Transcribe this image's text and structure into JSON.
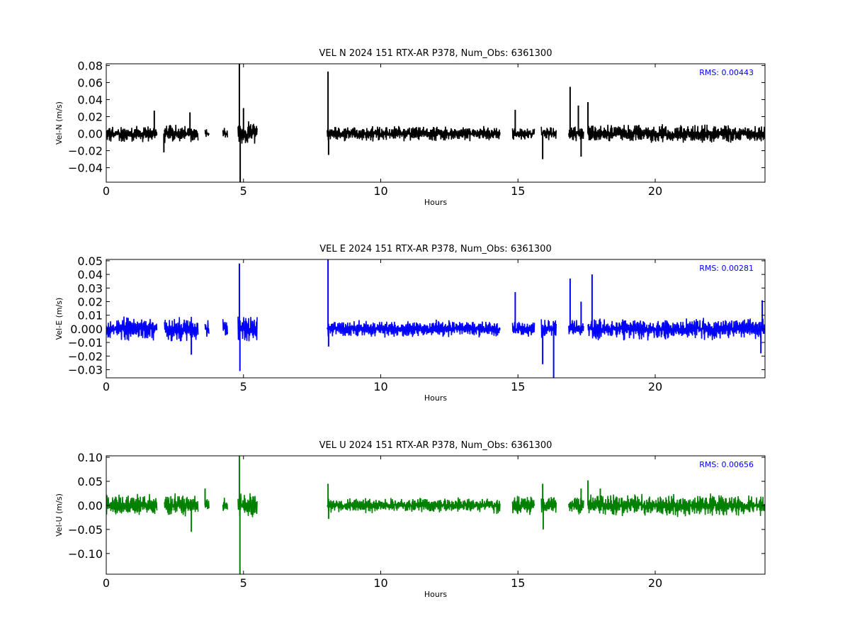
{
  "chart_data": [
    {
      "type": "line",
      "title": "VEL N 2024 151 RTX-AR  P378, Num_Obs: 6361300",
      "xlabel": "Hours",
      "ylabel": "Vel-N (m/s)",
      "xlim": [
        0,
        24
      ],
      "ylim": [
        -0.057,
        0.082
      ],
      "xticks": [
        0,
        5,
        10,
        15,
        20
      ],
      "xtick_labels": [
        "0",
        "5",
        "10",
        "15",
        "20"
      ],
      "yticks": [
        -0.04,
        -0.02,
        0.0,
        0.02,
        0.04,
        0.06,
        0.08
      ],
      "ytick_labels": [
        "−0.04",
        "−0.02",
        "0.00",
        "0.02",
        "0.04",
        "0.06",
        "0.08"
      ],
      "annotation": "RMS:  0.00443",
      "annotation_color": "#0000ff",
      "grid": false,
      "series": [
        {
          "color": "#000000",
          "segments": [
            {
              "x": [
                0.0,
                1.85
              ],
              "amp": 0.012
            },
            {
              "x": [
                2.12,
                3.35
              ],
              "amp": 0.012
            },
            {
              "x": [
                3.6,
                3.75
              ],
              "amp": 0.008
            },
            {
              "x": [
                4.25,
                4.42
              ],
              "amp": 0.009
            },
            {
              "x": [
                4.8,
                5.5
              ],
              "amp": 0.015
            },
            {
              "x": [
                8.05,
                14.35
              ],
              "amp": 0.01
            },
            {
              "x": [
                14.8,
                15.6
              ],
              "amp": 0.008
            },
            {
              "x": [
                15.85,
                16.4
              ],
              "amp": 0.009
            },
            {
              "x": [
                16.85,
                17.4
              ],
              "amp": 0.01
            },
            {
              "x": [
                17.55,
                24.0
              ],
              "amp": 0.012
            }
          ],
          "spikes": [
            {
              "x": 1.75,
              "y": 0.027
            },
            {
              "x": 2.1,
              "y": -0.022
            },
            {
              "x": 3.05,
              "y": 0.025
            },
            {
              "x": 4.85,
              "y": 0.082
            },
            {
              "x": 4.88,
              "y": -0.057
            },
            {
              "x": 5.0,
              "y": 0.03
            },
            {
              "x": 8.08,
              "y": 0.073
            },
            {
              "x": 8.1,
              "y": -0.025
            },
            {
              "x": 14.9,
              "y": 0.028
            },
            {
              "x": 15.9,
              "y": -0.03
            },
            {
              "x": 16.9,
              "y": 0.055
            },
            {
              "x": 17.2,
              "y": 0.033
            },
            {
              "x": 17.3,
              "y": -0.027
            },
            {
              "x": 17.55,
              "y": 0.037
            }
          ]
        }
      ]
    },
    {
      "type": "line",
      "title": "VEL E 2024 151 RTX-AR  P378, Num_Obs: 6361300",
      "xlabel": "Hours",
      "ylabel": "Vel-E (m/s)",
      "xlim": [
        0,
        24
      ],
      "ylim": [
        -0.036,
        0.051
      ],
      "xticks": [
        0,
        5,
        10,
        15,
        20
      ],
      "xtick_labels": [
        "0",
        "5",
        "10",
        "15",
        "20"
      ],
      "yticks": [
        -0.03,
        -0.02,
        -0.01,
        0.0,
        0.01,
        0.02,
        0.03,
        0.04,
        0.05
      ],
      "ytick_labels": [
        "−0.03",
        "−0.02",
        "−0.01",
        "0.000",
        "0.01",
        "0.02",
        "0.03",
        "0.04",
        "0.05"
      ],
      "annotation": "RMS:  0.00281",
      "annotation_color": "#0000ff",
      "grid": false,
      "series": [
        {
          "color": "#0000ff",
          "segments": [
            {
              "x": [
                0.0,
                1.85
              ],
              "amp": 0.01
            },
            {
              "x": [
                2.12,
                3.35
              ],
              "amp": 0.011
            },
            {
              "x": [
                3.6,
                3.75
              ],
              "amp": 0.008
            },
            {
              "x": [
                4.25,
                4.42
              ],
              "amp": 0.008
            },
            {
              "x": [
                4.8,
                5.5
              ],
              "amp": 0.012
            },
            {
              "x": [
                8.05,
                14.35
              ],
              "amp": 0.007
            },
            {
              "x": [
                14.8,
                15.6
              ],
              "amp": 0.007
            },
            {
              "x": [
                15.85,
                16.4
              ],
              "amp": 0.008
            },
            {
              "x": [
                16.85,
                17.4
              ],
              "amp": 0.007
            },
            {
              "x": [
                17.55,
                24.0
              ],
              "amp": 0.009
            }
          ],
          "spikes": [
            {
              "x": 3.1,
              "y": -0.019
            },
            {
              "x": 4.85,
              "y": 0.048
            },
            {
              "x": 4.87,
              "y": -0.031
            },
            {
              "x": 8.08,
              "y": 0.051
            },
            {
              "x": 8.1,
              "y": -0.013
            },
            {
              "x": 14.9,
              "y": 0.027
            },
            {
              "x": 15.9,
              "y": -0.026
            },
            {
              "x": 16.3,
              "y": -0.036
            },
            {
              "x": 16.9,
              "y": 0.037
            },
            {
              "x": 17.3,
              "y": 0.02
            },
            {
              "x": 17.7,
              "y": 0.04
            },
            {
              "x": 23.9,
              "y": 0.021
            },
            {
              "x": 23.85,
              "y": -0.018
            }
          ]
        }
      ]
    },
    {
      "type": "line",
      "title": "VEL U 2024 151 RTX-AR  P378, Num_Obs: 6361300",
      "xlabel": "Hours",
      "ylabel": "Vel-U (m/s)",
      "xlim": [
        0,
        24
      ],
      "ylim": [
        -0.143,
        0.103
      ],
      "xticks": [
        0,
        5,
        10,
        15,
        20
      ],
      "xtick_labels": [
        "0",
        "5",
        "10",
        "15",
        "20"
      ],
      "yticks": [
        -0.1,
        -0.05,
        0.0,
        0.05,
        0.1
      ],
      "ytick_labels": [
        "−0.10",
        "−0.05",
        "0.00",
        "0.05",
        "0.10"
      ],
      "annotation": "RMS:  0.00656",
      "annotation_color": "#0000ff",
      "grid": false,
      "series": [
        {
          "color": "#008000",
          "segments": [
            {
              "x": [
                0.0,
                1.85
              ],
              "amp": 0.025
            },
            {
              "x": [
                2.12,
                3.35
              ],
              "amp": 0.027
            },
            {
              "x": [
                3.6,
                3.75
              ],
              "amp": 0.02
            },
            {
              "x": [
                4.25,
                4.42
              ],
              "amp": 0.018
            },
            {
              "x": [
                4.8,
                5.5
              ],
              "amp": 0.03
            },
            {
              "x": [
                8.05,
                14.35
              ],
              "amp": 0.018
            },
            {
              "x": [
                14.8,
                15.6
              ],
              "amp": 0.022
            },
            {
              "x": [
                15.85,
                16.4
              ],
              "amp": 0.022
            },
            {
              "x": [
                16.85,
                17.4
              ],
              "amp": 0.022
            },
            {
              "x": [
                17.55,
                24.0
              ],
              "amp": 0.025
            }
          ],
          "spikes": [
            {
              "x": 3.1,
              "y": -0.055
            },
            {
              "x": 3.6,
              "y": 0.035
            },
            {
              "x": 4.85,
              "y": 0.103
            },
            {
              "x": 4.87,
              "y": -0.143
            },
            {
              "x": 8.08,
              "y": 0.045
            },
            {
              "x": 8.1,
              "y": -0.028
            },
            {
              "x": 15.9,
              "y": 0.045
            },
            {
              "x": 15.92,
              "y": -0.05
            },
            {
              "x": 17.3,
              "y": 0.035
            },
            {
              "x": 17.55,
              "y": 0.052
            },
            {
              "x": 18.0,
              "y": 0.035
            }
          ]
        }
      ]
    }
  ]
}
